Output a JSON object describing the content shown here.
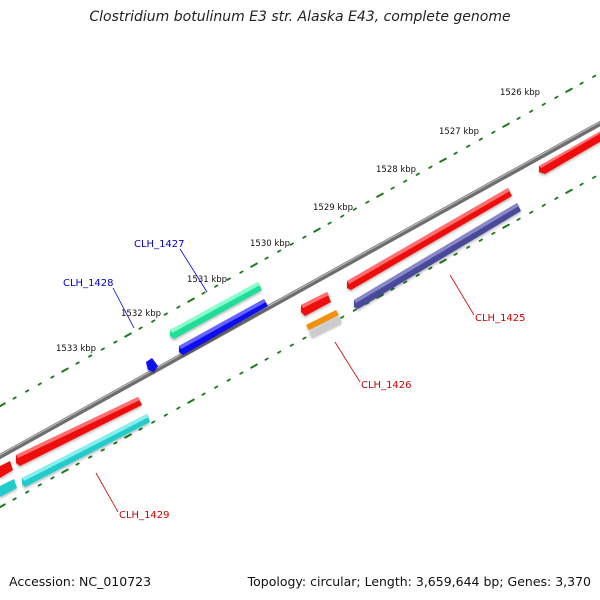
{
  "title": "Clostridium botulinum E3 str. Alaska E43, complete genome",
  "footer": {
    "accession": "Accession: NC_010723",
    "summary": "Topology: circular; Length: 3,659,644 bp; Genes: 3,370"
  },
  "kbp_labels": [
    "1526 kbp",
    "1527 kbp",
    "1528 kbp",
    "1529 kbp",
    "1530 kbp",
    "1531 kbp",
    "1532 kbp",
    "1533 kbp"
  ],
  "genes": [
    {
      "name": "CLH_1425",
      "label_color": "#cc0000"
    },
    {
      "name": "CLH_1426",
      "label_color": "#cc0000"
    },
    {
      "name": "CLH_1427",
      "label_color": "#0000cc"
    },
    {
      "name": "CLH_1428",
      "label_color": "#0000cc"
    },
    {
      "name": "CLH_1429",
      "label_color": "#cc0000"
    }
  ],
  "colors": {
    "backbone": "#8a8a8a",
    "tick": "#1a7a1a",
    "cds_red": "#ee1111",
    "cds_navy": "#4a4a9a",
    "cds_blue": "#1111ee",
    "cds_green": "#22dd99",
    "cds_cyan": "#22cccc",
    "cds_orange": "#f09010",
    "cds_gray": "#cccccc"
  }
}
